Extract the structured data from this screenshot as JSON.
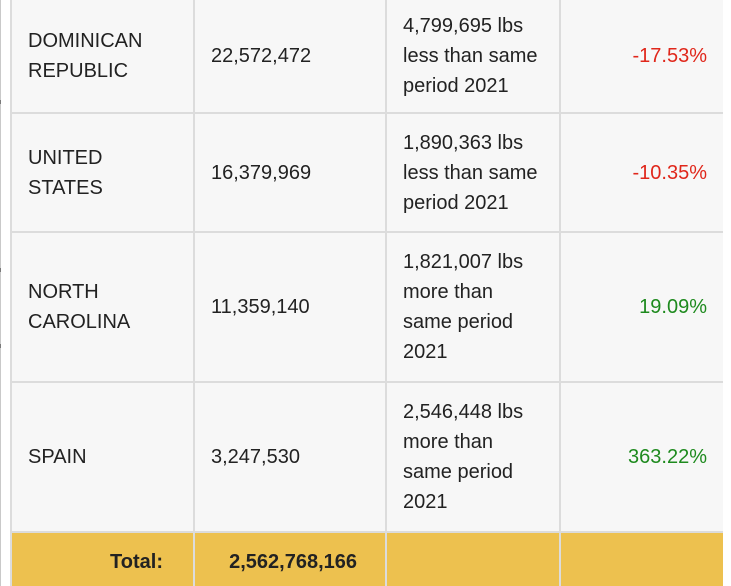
{
  "rows": [
    {
      "name": "DOMINICAN REPUBLIC",
      "amount": "22,572,472",
      "change": "4,799,695 lbs less than same period 2021",
      "percent": "-17.53%",
      "percent_color": "#e0271b"
    },
    {
      "name": "UNITED STATES",
      "amount": "16,379,969",
      "change": "1,890,363 lbs less than same period 2021",
      "percent": "-10.35%",
      "percent_color": "#e0271b"
    },
    {
      "name": "NORTH CAROLINA",
      "amount": "11,359,140",
      "change": "1,821,007 lbs more than same period 2021",
      "percent": "19.09%",
      "percent_color": "#1e8a1e"
    },
    {
      "name": "SPAIN",
      "amount": "3,247,530",
      "change": "2,546,448 lbs more than same period 2021",
      "percent": "363.22%",
      "percent_color": "#1e8a1e"
    }
  ],
  "total": {
    "label": "Total:",
    "value": "2,562,768,166"
  },
  "colors": {
    "total_row_background": "#edc14f",
    "row_background": "#f7f7f7",
    "negative": "#e0271b",
    "positive": "#1e8a1e"
  }
}
